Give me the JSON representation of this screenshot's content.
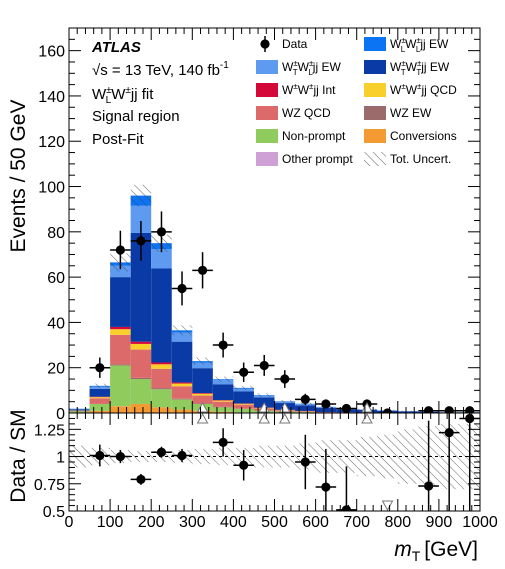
{
  "chart_data": {
    "type": "bar",
    "stacked": true,
    "x_edges": [
      0,
      50,
      100,
      150,
      200,
      250,
      300,
      350,
      400,
      450,
      500,
      550,
      600,
      650,
      700,
      750,
      800,
      850,
      900,
      950,
      1000
    ],
    "xlabel": "m",
    "xlabel_sub": "T",
    "xlabel_unit": "[GeV]",
    "ylabel": "Events / 50 GeV",
    "ylim": [
      0,
      170
    ],
    "yticks": [
      "0",
      "20",
      "40",
      "60",
      "80",
      "100",
      "120",
      "140",
      "160"
    ],
    "xticks": [
      "0",
      "100",
      "200",
      "300",
      "400",
      "500",
      "600",
      "700",
      "800",
      "900",
      "1000"
    ],
    "ratio_ylabel": "Data / SM",
    "ratio_ylim": [
      0.5,
      1.4
    ],
    "ratio_yticks": [
      "0.5",
      "0.75",
      "1",
      "1.25"
    ],
    "annotations": {
      "experiment": "ATLAS",
      "energy": "√s = 13 TeV, 140 fb",
      "energy_sup": "-1",
      "fit": "W",
      "fit_sub": "L",
      "fit_sup": "±",
      "fit_rest1": "W",
      "fit_rest1_sup": "±",
      "fit_rest2": "jj fit",
      "region": "Signal region",
      "postfit": "Post-Fit"
    },
    "legend_placement": "top-right",
    "legend": [
      {
        "label": "Data",
        "kind": "marker"
      },
      {
        "label": "W±LW±Ljj EW",
        "kind": "fill",
        "color": "#0b74f4"
      },
      {
        "label": "W±TW±Ljj EW",
        "kind": "fill",
        "color": "#5d9af0"
      },
      {
        "label": "W±TW±Tjj EW",
        "kind": "fill",
        "color": "#0a3aa6"
      },
      {
        "label": "W±W±jj Int",
        "kind": "fill",
        "color": "#d4093a"
      },
      {
        "label": "W±W±jj QCD",
        "kind": "fill",
        "color": "#f9cf2c"
      },
      {
        "label": "WZ QCD",
        "kind": "fill",
        "color": "#dd6a6a"
      },
      {
        "label": "WZ EW",
        "kind": "fill",
        "color": "#9b6a6a"
      },
      {
        "label": "Non-prompt",
        "kind": "fill",
        "color": "#8fcb5d"
      },
      {
        "label": "Conversions",
        "kind": "fill",
        "color": "#f39a32"
      },
      {
        "label": "Other prompt",
        "kind": "fill",
        "color": "#cfa0d6"
      },
      {
        "label": "Tot. Uncert.",
        "kind": "hatch"
      }
    ],
    "series": [
      {
        "name": "Conversions",
        "color": "#f39a32",
        "values": [
          0.2,
          1.0,
          3.0,
          4.0,
          2.5,
          1.5,
          1.0,
          0.5,
          0.3,
          0.2,
          0.1,
          0.1,
          0,
          0,
          0,
          0,
          0,
          0,
          0,
          0
        ]
      },
      {
        "name": "Non-prompt",
        "color": "#8fcb5d",
        "values": [
          0.5,
          3.0,
          18.0,
          11.0,
          8.0,
          4.5,
          3.0,
          2.0,
          1.5,
          0.8,
          0.5,
          0.3,
          0.2,
          0.1,
          0.1,
          0.1,
          0,
          0,
          0,
          0
        ]
      },
      {
        "name": "WZ EW",
        "color": "#9b6a6a",
        "values": [
          0,
          0,
          0.5,
          0.5,
          0.5,
          0.3,
          0.2,
          0.2,
          0.1,
          0.1,
          0,
          0,
          0,
          0,
          0,
          0,
          0,
          0,
          0,
          0
        ]
      },
      {
        "name": "WZ QCD",
        "color": "#dd6a6a",
        "values": [
          0.3,
          2.5,
          13.0,
          12.5,
          8.5,
          5.5,
          3.5,
          2.3,
          1.8,
          1.0,
          0.6,
          0.4,
          0.2,
          0.2,
          0.1,
          0.1,
          0,
          0,
          0,
          0
        ]
      },
      {
        "name": "W±W±jj QCD",
        "color": "#f9cf2c",
        "values": [
          0.1,
          0.5,
          2.5,
          2.5,
          2.0,
          1.2,
          0.8,
          0.5,
          0.4,
          0.2,
          0.1,
          0.1,
          0,
          0,
          0,
          0,
          0,
          0,
          0,
          0
        ]
      },
      {
        "name": "W±W±jj Int",
        "color": "#d4093a",
        "values": [
          0,
          0.2,
          1.0,
          1.0,
          0.8,
          0.5,
          0.3,
          0.2,
          0.1,
          0.1,
          0.1,
          0,
          0,
          0,
          0,
          0,
          0,
          0,
          0,
          0
        ]
      },
      {
        "name": "W±TW±Tjj EW",
        "color": "#0a3aa6",
        "values": [
          0.5,
          3.5,
          22.0,
          48.0,
          41.5,
          18.0,
          11.0,
          7.0,
          5.3,
          4.5,
          3.0,
          2.5,
          1.8,
          1.3,
          1.2,
          0.8,
          0.7,
          0.5,
          0.3,
          0.3
        ]
      },
      {
        "name": "W±TW±Ljj EW",
        "color": "#5d9af0",
        "values": [
          0.2,
          1.0,
          5.0,
          12.0,
          8.5,
          4.0,
          2.5,
          1.8,
          1.3,
          0.8,
          0.7,
          0.6,
          0.4,
          0.3,
          0.2,
          0.2,
          0.1,
          0.1,
          0.1,
          0.1
        ]
      },
      {
        "name": "Other prompt",
        "color": "#cfa0d6",
        "values": [
          0,
          0,
          0,
          0,
          0,
          0,
          0,
          0,
          0,
          0,
          0,
          0,
          0,
          0,
          0,
          0,
          0,
          0,
          0,
          0
        ]
      },
      {
        "name": "W±LW±Ljj EW",
        "color": "#0b74f4",
        "values": [
          0.1,
          0.3,
          1.5,
          4.5,
          2.7,
          1.0,
          0.6,
          0.4,
          0.3,
          0.2,
          0.1,
          0.1,
          0.1,
          0.1,
          0,
          0,
          0,
          0,
          0,
          0
        ]
      }
    ],
    "uncertainty_frac": [
      0.1,
      0.08,
      0.06,
      0.05,
      0.05,
      0.06,
      0.07,
      0.08,
      0.08,
      0.1,
      0.1,
      0.12,
      0.15,
      0.15,
      0.18,
      0.2,
      0.25,
      0.28,
      0.3,
      0.3
    ],
    "data": [
      {
        "x": 75,
        "y": 20,
        "err": 4.5
      },
      {
        "x": 125,
        "y": 72,
        "err": 8.5
      },
      {
        "x": 175,
        "y": 76,
        "err": 8.8
      },
      {
        "x": 225,
        "y": 80,
        "err": 9.0
      },
      {
        "x": 275,
        "y": 55,
        "err": 7.5
      },
      {
        "x": 325,
        "y": 63,
        "err": 8.0
      },
      {
        "x": 375,
        "y": 30,
        "err": 5.5
      },
      {
        "x": 425,
        "y": 18,
        "err": 4.3
      },
      {
        "x": 475,
        "y": 21,
        "err": 4.6
      },
      {
        "x": 525,
        "y": 15,
        "err": 3.9
      },
      {
        "x": 575,
        "y": 6,
        "err": 2.5
      },
      {
        "x": 625,
        "y": 4,
        "err": 2.0
      },
      {
        "x": 675,
        "y": 2,
        "err": 1.4
      },
      {
        "x": 725,
        "y": 4,
        "err": 2.0
      },
      {
        "x": 775,
        "y": 0,
        "err": 1.1
      },
      {
        "x": 875,
        "y": 1,
        "err": 1.1
      },
      {
        "x": 925,
        "y": 1,
        "err": 1.1
      },
      {
        "x": 975,
        "y": 1,
        "err": 1.1
      }
    ],
    "ratio": [
      {
        "x": 75,
        "y": 1.01,
        "err": 0.1
      },
      {
        "x": 125,
        "y": 1.0,
        "err": 0.06
      },
      {
        "x": 175,
        "y": 0.79,
        "err": 0.05
      },
      {
        "x": 225,
        "y": 1.04,
        "err": 0.05
      },
      {
        "x": 275,
        "y": 1.01,
        "err": 0.06
      },
      {
        "x": 375,
        "y": 1.13,
        "err": 0.13
      },
      {
        "x": 425,
        "y": 0.92,
        "err": 0.14
      },
      {
        "x": 575,
        "y": 0.95,
        "err": 0.25
      },
      {
        "x": 625,
        "y": 0.72,
        "err": 0.35
      },
      {
        "x": 675,
        "y": 0.51,
        "err": 0.4
      },
      {
        "x": 875,
        "y": 0.73,
        "err": 0.6
      },
      {
        "x": 925,
        "y": 1.22,
        "err": 0.8
      },
      {
        "x": 975,
        "y": 1.35,
        "err": 0.9
      }
    ],
    "ratio_offscale_up": [
      325,
      475,
      525,
      725
    ],
    "ratio_offscale_down": [
      775
    ],
    "main_offscale_up": [
      325,
      475,
      525,
      725
    ]
  }
}
